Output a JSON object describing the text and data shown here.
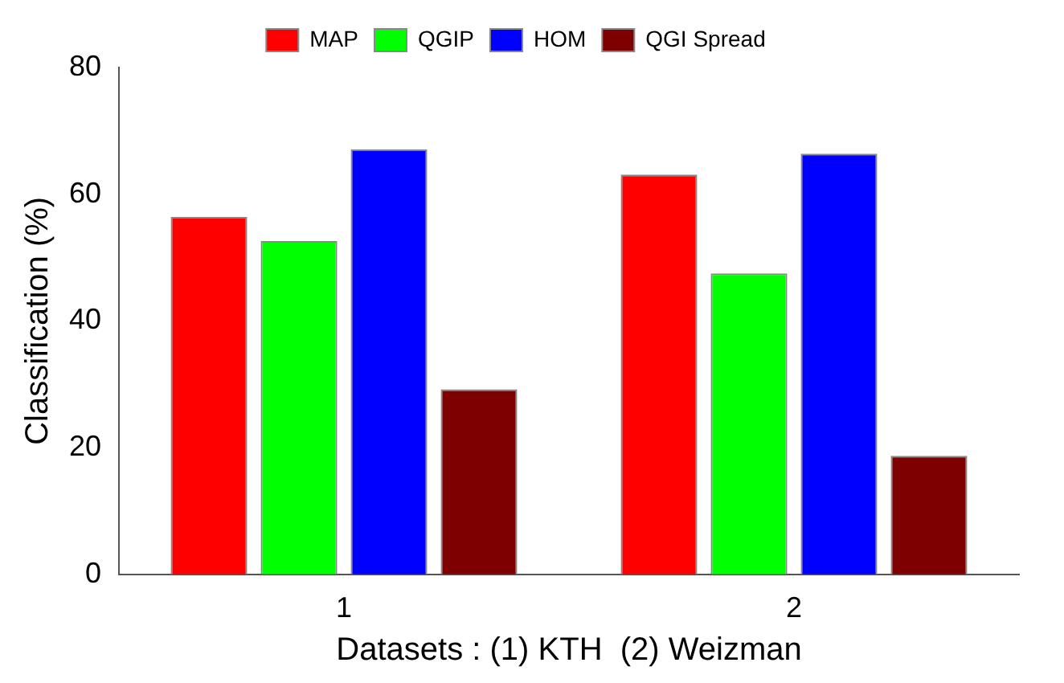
{
  "chart_data": {
    "type": "bar",
    "xlabel": "Datasets : (1) KTH  (2) Weizman",
    "ylabel": "Classification (%)",
    "categories": [
      "1",
      "2"
    ],
    "series": [
      {
        "name": "MAP",
        "color": "#ff0000",
        "values": [
          56.4,
          63.1
        ]
      },
      {
        "name": "QGIP",
        "color": "#00ff00",
        "values": [
          52.6,
          47.5
        ]
      },
      {
        "name": "HOM",
        "color": "#0000ff",
        "values": [
          67.1,
          66.4
        ]
      },
      {
        "name": "QGI Spread",
        "color": "#7f0000",
        "values": [
          29.2,
          18.7
        ]
      }
    ],
    "ylim": [
      0,
      80
    ],
    "yticks": [
      0,
      20,
      40,
      60,
      80
    ],
    "grid": false,
    "legend": "top"
  }
}
